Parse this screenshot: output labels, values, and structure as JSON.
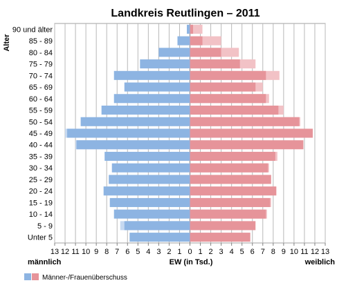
{
  "chart_data": {
    "type": "bar",
    "title": "Landkreis Reutlingen – 2011",
    "ylabel": "Alter",
    "xlabel": "EW (in Tsd.)",
    "left_label": "männlich",
    "right_label": "weiblich",
    "xlim": [
      -13,
      13
    ],
    "x_tick_labels": [
      "13",
      "12",
      "11",
      "10",
      "9",
      "8",
      "7",
      "6",
      "5",
      "4",
      "3",
      "2",
      "1",
      "0",
      "1",
      "2",
      "3",
      "4",
      "5",
      "6",
      "7",
      "8",
      "9",
      "10",
      "11",
      "12",
      "13"
    ],
    "grid": true,
    "categories": [
      "90 und älter",
      "85 - 89",
      "80 - 84",
      "75 - 79",
      "70 - 74",
      "65 - 69",
      "60 - 64",
      "55 - 59",
      "50 - 54",
      "45 - 49",
      "40 - 44",
      "35 - 39",
      "30 - 34",
      "25 - 29",
      "20 - 24",
      "15 - 19",
      "10 - 14",
      "5 - 9",
      "Unter 5"
    ],
    "series": [
      {
        "name": "männlich",
        "color": "#8db4e2",
        "values": [
          0.3,
          1.2,
          3.0,
          4.8,
          7.3,
          6.3,
          7.3,
          8.5,
          10.5,
          12.0,
          11.0,
          8.2,
          7.5,
          7.8,
          8.3,
          7.7,
          7.3,
          6.7,
          5.8
        ]
      },
      {
        "name": "weiblich",
        "color": "#e6949a",
        "values": [
          1.2,
          3.0,
          4.7,
          6.3,
          8.6,
          7.0,
          7.6,
          9.0,
          10.6,
          11.8,
          10.9,
          8.4,
          7.6,
          7.8,
          8.3,
          7.8,
          7.4,
          6.3,
          5.8
        ]
      }
    ],
    "surplus_color_male": "#c6d9f1",
    "surplus_color_female": "#f2c2c6",
    "legend": {
      "label": "Männer-/Frauenüberschuss",
      "position": "bottom-left"
    }
  }
}
